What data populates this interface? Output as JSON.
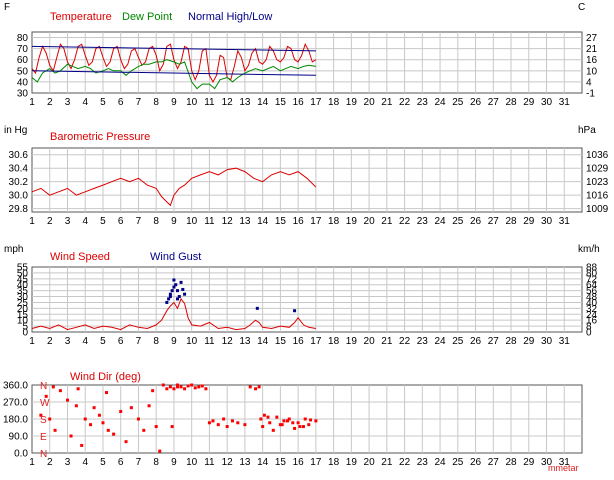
{
  "x_days": [
    "1",
    "2",
    "3",
    "4",
    "5",
    "6",
    "7",
    "8",
    "9",
    "10",
    "11",
    "12",
    "13",
    "14",
    "15",
    "16",
    "17",
    "18",
    "19",
    "20",
    "21",
    "22",
    "23",
    "24",
    "25",
    "26",
    "27",
    "28",
    "29",
    "30",
    "31"
  ],
  "chart_data": [
    {
      "type": "line",
      "unit_left": "F",
      "unit_right": "C",
      "title_parts": [
        {
          "text": "Temperature",
          "color": "#dd0000"
        },
        {
          "text": "Dew Point",
          "color": "#008800"
        },
        {
          "text": "Normal High/Low",
          "color": "#000088"
        }
      ],
      "ylim": [
        30,
        85
      ],
      "yticks": [
        "30",
        "40",
        "50",
        "60",
        "70",
        "80"
      ],
      "yticks_right": [
        "-1",
        "4",
        "10",
        "16",
        "21",
        "27"
      ],
      "xlim": [
        1,
        32
      ],
      "series": [
        {
          "name": "Temperature",
          "color": "#dd0000",
          "width": 1,
          "x": [
            1,
            1.2,
            1.4,
            1.6,
            1.8,
            2,
            2.2,
            2.4,
            2.6,
            2.8,
            3,
            3.2,
            3.4,
            3.6,
            3.8,
            4,
            4.2,
            4.4,
            4.6,
            4.8,
            5,
            5.2,
            5.4,
            5.6,
            5.8,
            6,
            6.2,
            6.4,
            6.6,
            6.8,
            7,
            7.2,
            7.4,
            7.6,
            7.8,
            8,
            8.2,
            8.4,
            8.6,
            8.8,
            9,
            9.2,
            9.4,
            9.6,
            9.8,
            10,
            10.2,
            10.4,
            10.6,
            10.8,
            11,
            11.2,
            11.4,
            11.6,
            11.8,
            12,
            12.2,
            12.4,
            12.6,
            12.8,
            13,
            13.2,
            13.4,
            13.6,
            13.8,
            14,
            14.2,
            14.4,
            14.6,
            14.8,
            15,
            15.2,
            15.4,
            15.6,
            15.8,
            16,
            16.2,
            16.4,
            16.6,
            16.8,
            17
          ],
          "y": [
            52,
            48,
            62,
            72,
            66,
            55,
            50,
            62,
            74,
            70,
            58,
            52,
            60,
            72,
            74,
            64,
            55,
            58,
            70,
            72,
            62,
            54,
            58,
            70,
            72,
            60,
            52,
            56,
            68,
            70,
            62,
            55,
            58,
            70,
            72,
            64,
            50,
            56,
            72,
            74,
            60,
            52,
            58,
            72,
            70,
            50,
            42,
            50,
            68,
            70,
            46,
            40,
            46,
            64,
            62,
            44,
            42,
            54,
            68,
            62,
            50,
            55,
            66,
            70,
            58,
            56,
            60,
            72,
            68,
            60,
            58,
            62,
            72,
            70,
            60,
            58,
            64,
            74,
            68,
            58,
            60
          ]
        },
        {
          "name": "Dew Point",
          "color": "#008800",
          "width": 1,
          "x": [
            1,
            1.3,
            1.6,
            2,
            2.3,
            2.6,
            3,
            3.3,
            3.6,
            4,
            4.3,
            4.6,
            5,
            5.3,
            5.6,
            6,
            6.3,
            6.6,
            7,
            7.3,
            7.6,
            8,
            8.3,
            8.6,
            9,
            9.3,
            9.6,
            10,
            10.3,
            10.6,
            11,
            11.3,
            11.6,
            12,
            12.3,
            12.6,
            13,
            13.3,
            13.6,
            14,
            14.3,
            14.6,
            15,
            15.3,
            15.6,
            16,
            16.3,
            16.6,
            17
          ],
          "y": [
            44,
            40,
            48,
            52,
            48,
            50,
            56,
            54,
            52,
            54,
            52,
            48,
            50,
            52,
            50,
            50,
            46,
            50,
            54,
            56,
            56,
            58,
            58,
            60,
            58,
            56,
            58,
            40,
            34,
            38,
            38,
            34,
            42,
            44,
            40,
            44,
            48,
            50,
            52,
            50,
            52,
            54,
            50,
            52,
            54,
            52,
            54,
            55,
            54
          ]
        },
        {
          "name": "Normal High",
          "color": "#000088",
          "width": 1,
          "x": [
            1,
            17
          ],
          "y": [
            72,
            68
          ]
        },
        {
          "name": "Normal Low",
          "color": "#000088",
          "width": 1,
          "x": [
            1,
            17
          ],
          "y": [
            50,
            46
          ]
        }
      ]
    },
    {
      "type": "line",
      "unit_left": "in Hg",
      "unit_right": "hPa",
      "title_parts": [
        {
          "text": "Barometric Pressure",
          "color": "#dd0000"
        }
      ],
      "ylim": [
        29.75,
        30.7
      ],
      "yticks": [
        "29.8",
        "30.0",
        "30.2",
        "30.4",
        "30.6"
      ],
      "yticks_right": [
        "1009",
        "1016",
        "1023",
        "1029",
        "1036"
      ],
      "xlim": [
        1,
        32
      ],
      "series": [
        {
          "name": "Barometric Pressure",
          "color": "#dd0000",
          "width": 1,
          "x": [
            1,
            1.5,
            2,
            2.5,
            3,
            3.5,
            4,
            4.5,
            5,
            5.5,
            6,
            6.5,
            7,
            7.5,
            8,
            8.3,
            8.6,
            8.8,
            9,
            9.3,
            9.6,
            10,
            10.5,
            11,
            11.5,
            12,
            12.5,
            13,
            13.5,
            14,
            14.5,
            15,
            15.5,
            16,
            16.5,
            17
          ],
          "y": [
            30.05,
            30.1,
            30.0,
            30.05,
            30.1,
            30.0,
            30.05,
            30.1,
            30.15,
            30.2,
            30.25,
            30.2,
            30.25,
            30.15,
            30.1,
            29.98,
            29.9,
            29.85,
            30.0,
            30.1,
            30.15,
            30.25,
            30.3,
            30.35,
            30.3,
            30.38,
            30.4,
            30.35,
            30.25,
            30.2,
            30.3,
            30.35,
            30.3,
            30.35,
            30.25,
            30.12
          ]
        }
      ]
    },
    {
      "type": "line",
      "unit_left": "mph",
      "unit_right": "km/h",
      "title_parts": [
        {
          "text": "Wind Speed",
          "color": "#dd0000"
        },
        {
          "text": "Wind Gust",
          "color": "#000088"
        }
      ],
      "ylim": [
        0,
        55
      ],
      "yticks": [
        "0",
        "5",
        "10",
        "15",
        "20",
        "25",
        "30",
        "35",
        "40",
        "45",
        "50",
        "55"
      ],
      "yticks_right": [
        "0",
        "8",
        "16",
        "24",
        "32",
        "40",
        "48",
        "56",
        "64",
        "72",
        "80",
        "88"
      ],
      "xlim": [
        1,
        32
      ],
      "series": [
        {
          "name": "Wind Speed",
          "color": "#dd0000",
          "width": 1,
          "x": [
            1,
            1.5,
            2,
            2.5,
            3,
            3.5,
            4,
            4.5,
            5,
            5.5,
            6,
            6.5,
            7,
            7.5,
            8,
            8.3,
            8.6,
            8.8,
            9,
            9.2,
            9.4,
            9.6,
            9.8,
            10,
            10.5,
            11,
            11.5,
            12,
            12.5,
            13,
            13.3,
            13.6,
            13.8,
            14,
            14.5,
            15,
            15.5,
            15.8,
            16,
            16.3,
            16.6,
            17
          ],
          "y": [
            3,
            5,
            3,
            6,
            2,
            4,
            6,
            3,
            5,
            4,
            2,
            6,
            4,
            3,
            6,
            10,
            18,
            22,
            25,
            20,
            28,
            24,
            12,
            6,
            5,
            8,
            3,
            4,
            2,
            3,
            6,
            10,
            8,
            4,
            3,
            5,
            4,
            8,
            12,
            6,
            4,
            3
          ]
        },
        {
          "name": "Wind Gust",
          "color": "#000088",
          "mode": "points",
          "x": [
            8.6,
            8.7,
            8.8,
            8.9,
            9.0,
            9.1,
            9.2,
            9.3,
            9.4,
            9.5,
            9.6,
            9.0,
            8.8,
            9.2,
            13.7,
            15.8
          ],
          "y": [
            25,
            28,
            32,
            35,
            38,
            40,
            35,
            30,
            42,
            36,
            32,
            44,
            30,
            28,
            20,
            18
          ]
        }
      ]
    },
    {
      "type": "scatter",
      "unit_left": "",
      "unit_right": "",
      "title_parts": [
        {
          "text": "Wind Dir (deg)",
          "color": "#dd0000"
        }
      ],
      "ylim": [
        0,
        360
      ],
      "yticks": [
        "0.0",
        "90.0",
        "180.0",
        "270.0",
        "360.0"
      ],
      "yticks_right": [],
      "dir_labels": [
        "N",
        "E",
        "S",
        "W",
        "N"
      ],
      "xlim": [
        1,
        32
      ],
      "series": [
        {
          "name": "Wind Dir (deg)",
          "color": "#ff0000",
          "mode": "points",
          "x": [
            1.5,
            1.8,
            2,
            2.3,
            2.6,
            3,
            3.2,
            3.5,
            3.8,
            4,
            4.3,
            4.5,
            4.8,
            5,
            5.3,
            5.6,
            6,
            6.3,
            6.6,
            7,
            7.3,
            7.6,
            8,
            8.2,
            8.4,
            8.6,
            8.8,
            9,
            9.2,
            9.4,
            9.6,
            9.8,
            10,
            10.2,
            10.4,
            10.6,
            11,
            11.2,
            11.5,
            11.8,
            12,
            12.3,
            12.6,
            13,
            13.3,
            13.6,
            13.8,
            14,
            14.3,
            14.6,
            15,
            15.2,
            15.5,
            15.8,
            16,
            16.3,
            16.6,
            17,
            2.2,
            3.6,
            5.2,
            7.8,
            9.2,
            10.8,
            13.9,
            14.1,
            14.4,
            14.8,
            15.1,
            15.4,
            15.7,
            16.1,
            16.4,
            16.7,
            8.9
          ],
          "y": [
            200,
            300,
            180,
            120,
            330,
            280,
            90,
            250,
            40,
            180,
            150,
            240,
            200,
            160,
            120,
            100,
            220,
            60,
            240,
            180,
            120,
            250,
            140,
            10,
            360,
            340,
            350,
            340,
            360,
            350,
            340,
            355,
            360,
            345,
            350,
            355,
            160,
            170,
            150,
            180,
            140,
            170,
            160,
            150,
            350,
            340,
            350,
            140,
            190,
            120,
            150,
            170,
            180,
            130,
            160,
            140,
            150,
            170,
            350,
            340,
            320,
            330,
            350,
            340,
            180,
            200,
            160,
            190,
            150,
            170,
            160,
            140,
            180,
            175,
            140
          ]
        }
      ]
    }
  ],
  "footer": {
    "credit": "mmetar"
  }
}
